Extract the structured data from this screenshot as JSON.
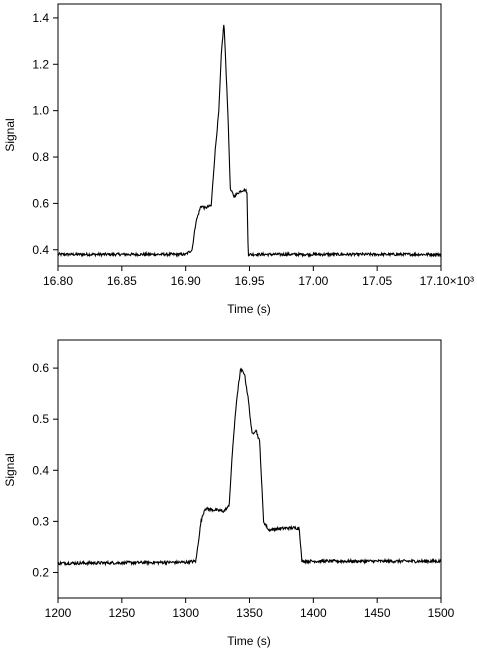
{
  "chart_data": [
    {
      "type": "line",
      "xlabel": "Time (s)",
      "ylabel": "Signal",
      "xlim": [
        16.8,
        17.1
      ],
      "ylim": [
        0.33,
        1.46
      ],
      "x_ticks": [
        16.8,
        16.85,
        16.9,
        16.95,
        17.0,
        17.05,
        17.1
      ],
      "x_tick_labels": [
        "16.80",
        "16.85",
        "16.90",
        "16.95",
        "17.00",
        "17.05",
        "17.10×10³"
      ],
      "y_ticks": [
        0.4,
        0.6,
        0.8,
        1.0,
        1.2,
        1.4
      ],
      "y_tick_labels": [
        "0.4",
        "0.6",
        "0.8",
        "1.0",
        "1.2",
        "1.4"
      ],
      "grid": false,
      "series": [
        {
          "values_profile": [
            [
              16.8,
              0.38
            ],
            [
              16.9,
              0.38
            ],
            [
              16.905,
              0.4
            ],
            [
              16.908,
              0.52
            ],
            [
              16.912,
              0.59
            ],
            [
              16.915,
              0.58
            ],
            [
              16.92,
              0.59
            ],
            [
              16.923,
              0.82
            ],
            [
              16.926,
              1.0
            ],
            [
              16.928,
              1.25
            ],
            [
              16.93,
              1.38
            ],
            [
              16.933,
              1.0
            ],
            [
              16.935,
              0.66
            ],
            [
              16.938,
              0.63
            ],
            [
              16.942,
              0.65
            ],
            [
              16.946,
              0.66
            ],
            [
              16.948,
              0.65
            ],
            [
              16.949,
              0.38
            ],
            [
              17.1,
              0.38
            ]
          ],
          "noise": 0.006
        }
      ]
    },
    {
      "type": "line",
      "xlabel": "Time (s)",
      "ylabel": "Signal",
      "xlim": [
        1200,
        1500
      ],
      "ylim": [
        0.15,
        0.655
      ],
      "x_ticks": [
        1200,
        1250,
        1300,
        1350,
        1400,
        1450,
        1500
      ],
      "x_tick_labels": [
        "1200",
        "1250",
        "1300",
        "1350",
        "1400",
        "1450",
        "1500"
      ],
      "y_ticks": [
        0.2,
        0.3,
        0.4,
        0.5,
        0.6
      ],
      "y_tick_labels": [
        "0.2",
        "0.3",
        "0.4",
        "0.5",
        "0.6"
      ],
      "grid": false,
      "series": [
        {
          "values_profile": [
            [
              1200,
              0.218
            ],
            [
              1300,
              0.22
            ],
            [
              1308,
              0.222
            ],
            [
              1312,
              0.3
            ],
            [
              1315,
              0.325
            ],
            [
              1320,
              0.323
            ],
            [
              1330,
              0.32
            ],
            [
              1334,
              0.33
            ],
            [
              1337,
              0.45
            ],
            [
              1340,
              0.54
            ],
            [
              1343,
              0.597
            ],
            [
              1346,
              0.59
            ],
            [
              1349,
              0.54
            ],
            [
              1352,
              0.47
            ],
            [
              1355,
              0.48
            ],
            [
              1358,
              0.455
            ],
            [
              1361,
              0.3
            ],
            [
              1365,
              0.283
            ],
            [
              1370,
              0.285
            ],
            [
              1380,
              0.287
            ],
            [
              1389,
              0.287
            ],
            [
              1391,
              0.222
            ],
            [
              1500,
              0.222
            ]
          ],
          "noise": 0.003
        }
      ]
    }
  ]
}
